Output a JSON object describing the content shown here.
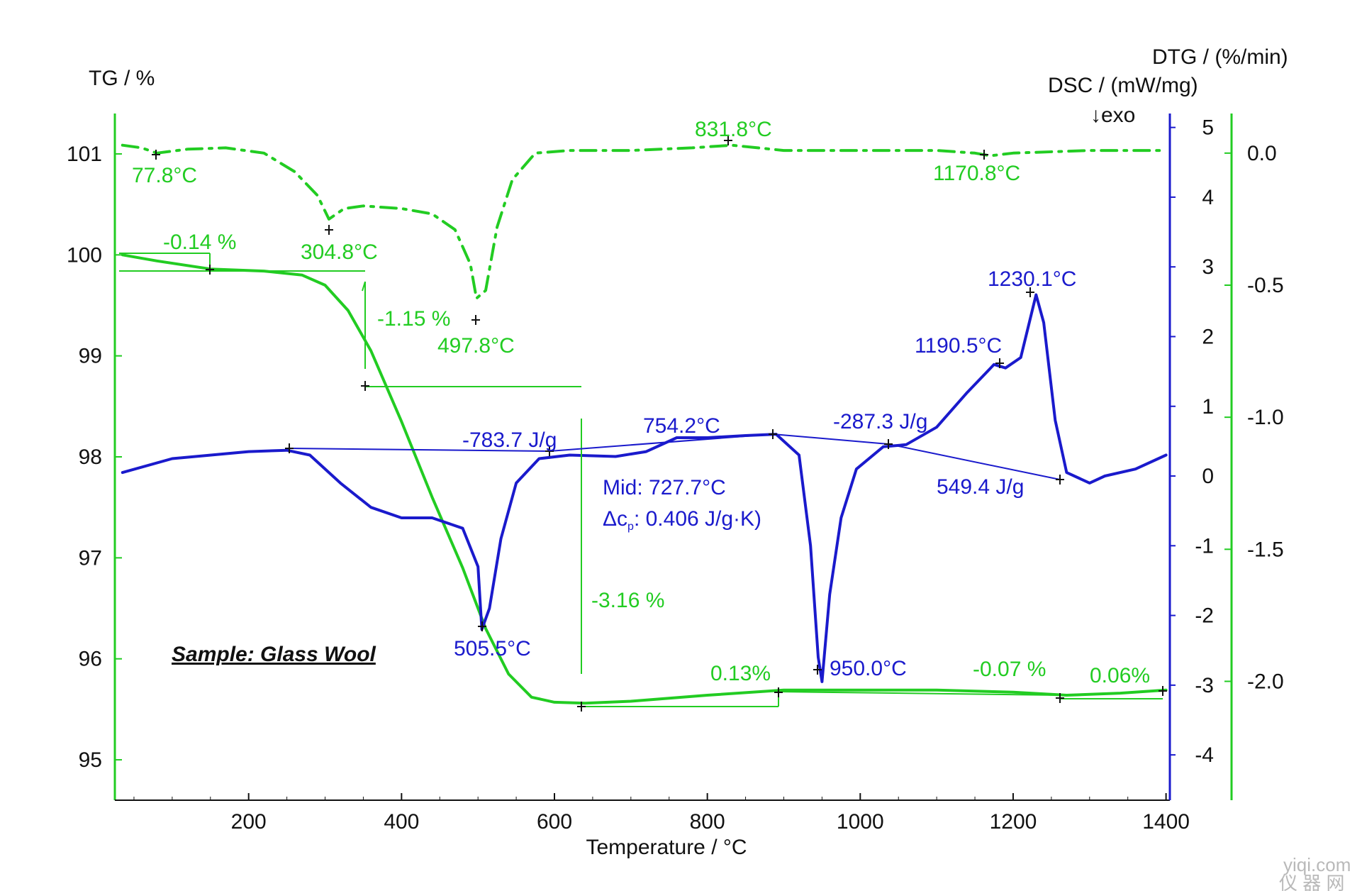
{
  "colors": {
    "tg": "#22cc22",
    "dtg": "#22cc22",
    "dsc": "#1a1acc",
    "text": "#111111"
  },
  "chart_data": {
    "type": "line",
    "xlabel": "Temperature / °C",
    "x_ticks": [
      "200",
      "400",
      "600",
      "800",
      "1000",
      "1200",
      "1400"
    ],
    "xlim": [
      25,
      1405
    ],
    "axes": {
      "tg": {
        "label": "TG / %",
        "ylim": [
          94.6,
          101.4
        ],
        "ticks": [
          "95",
          "96",
          "97",
          "98",
          "99",
          "100",
          "101"
        ]
      },
      "dsc": {
        "label": "DSC / (mW/mg)",
        "exo_label": "↓exo",
        "ylim": [
          -4.65,
          5.2
        ],
        "ticks": [
          "5",
          "4",
          "3",
          "2",
          "1",
          "0",
          "-1",
          "-2",
          "-3",
          "-4"
        ]
      },
      "dtg": {
        "label": "DTG / (%/min)",
        "ylim": [
          -2.45,
          0.15
        ],
        "ticks": [
          "0.0",
          "-0.5",
          "-1.0",
          "-1.5",
          "-2.0"
        ]
      }
    },
    "series": [
      {
        "key": "tg",
        "axis": "tg",
        "style": "solid",
        "points": [
          [
            35,
            100.0
          ],
          [
            80,
            99.94
          ],
          [
            150,
            99.86
          ],
          [
            220,
            99.84
          ],
          [
            270,
            99.8
          ],
          [
            300,
            99.7
          ],
          [
            330,
            99.45
          ],
          [
            360,
            99.05
          ],
          [
            400,
            98.35
          ],
          [
            440,
            97.6
          ],
          [
            480,
            96.9
          ],
          [
            510,
            96.3
          ],
          [
            540,
            95.85
          ],
          [
            570,
            95.62
          ],
          [
            600,
            95.57
          ],
          [
            640,
            95.56
          ],
          [
            700,
            95.58
          ],
          [
            800,
            95.64
          ],
          [
            900,
            95.69
          ],
          [
            1000,
            95.69
          ],
          [
            1100,
            95.69
          ],
          [
            1200,
            95.67
          ],
          [
            1270,
            95.64
          ],
          [
            1340,
            95.66
          ],
          [
            1400,
            95.69
          ]
        ]
      },
      {
        "key": "dtg",
        "axis": "dtg",
        "style": "dashdot",
        "points": [
          [
            35,
            0.03
          ],
          [
            60,
            0.02
          ],
          [
            80,
            0.0
          ],
          [
            120,
            0.015
          ],
          [
            170,
            0.02
          ],
          [
            220,
            0.0
          ],
          [
            260,
            -0.07
          ],
          [
            290,
            -0.16
          ],
          [
            305,
            -0.25
          ],
          [
            325,
            -0.21
          ],
          [
            350,
            -0.2
          ],
          [
            400,
            -0.21
          ],
          [
            440,
            -0.23
          ],
          [
            470,
            -0.29
          ],
          [
            490,
            -0.42
          ],
          [
            498,
            -0.55
          ],
          [
            510,
            -0.52
          ],
          [
            525,
            -0.28
          ],
          [
            545,
            -0.1
          ],
          [
            575,
            0.0
          ],
          [
            620,
            0.01
          ],
          [
            700,
            0.01
          ],
          [
            780,
            0.02
          ],
          [
            832,
            0.03
          ],
          [
            900,
            0.01
          ],
          [
            1000,
            0.01
          ],
          [
            1100,
            0.01
          ],
          [
            1150,
            0.0
          ],
          [
            1170,
            -0.01
          ],
          [
            1200,
            0.0
          ],
          [
            1300,
            0.01
          ],
          [
            1400,
            0.01
          ]
        ]
      },
      {
        "key": "dsc",
        "axis": "dsc",
        "style": "solid",
        "points": [
          [
            35,
            0.05
          ],
          [
            100,
            0.25
          ],
          [
            200,
            0.35
          ],
          [
            250,
            0.37
          ],
          [
            280,
            0.3
          ],
          [
            320,
            -0.1
          ],
          [
            360,
            -0.45
          ],
          [
            400,
            -0.6
          ],
          [
            440,
            -0.6
          ],
          [
            480,
            -0.75
          ],
          [
            500,
            -1.3
          ],
          [
            505,
            -2.2
          ],
          [
            515,
            -1.9
          ],
          [
            530,
            -0.9
          ],
          [
            550,
            -0.1
          ],
          [
            580,
            0.25
          ],
          [
            620,
            0.3
          ],
          [
            680,
            0.28
          ],
          [
            720,
            0.35
          ],
          [
            760,
            0.55
          ],
          [
            800,
            0.55
          ],
          [
            850,
            0.58
          ],
          [
            890,
            0.6
          ],
          [
            920,
            0.3
          ],
          [
            935,
            -1.0
          ],
          [
            945,
            -2.6
          ],
          [
            950,
            -2.95
          ],
          [
            960,
            -1.7
          ],
          [
            975,
            -0.6
          ],
          [
            995,
            0.1
          ],
          [
            1030,
            0.42
          ],
          [
            1060,
            0.45
          ],
          [
            1100,
            0.7
          ],
          [
            1140,
            1.2
          ],
          [
            1175,
            1.6
          ],
          [
            1190,
            1.55
          ],
          [
            1210,
            1.7
          ],
          [
            1230,
            2.6
          ],
          [
            1240,
            2.2
          ],
          [
            1255,
            0.8
          ],
          [
            1270,
            0.05
          ],
          [
            1300,
            -0.1
          ],
          [
            1320,
            0.0
          ],
          [
            1360,
            0.1
          ],
          [
            1400,
            0.3
          ]
        ]
      }
    ],
    "annotations": [
      {
        "axis": "dtg",
        "x": 77.8,
        "text": "77.8°C"
      },
      {
        "axis": "dtg",
        "x": 304.8,
        "text": "304.8°C"
      },
      {
        "axis": "dtg",
        "x": 497.8,
        "text": "497.8°C"
      },
      {
        "axis": "dtg",
        "x": 831.8,
        "text": "831.8°C"
      },
      {
        "axis": "dtg",
        "x": 1170.8,
        "text": "1170.8°C"
      },
      {
        "axis": "tg",
        "text": "-0.14 %"
      },
      {
        "axis": "tg",
        "text": "-1.15 %"
      },
      {
        "axis": "tg",
        "text": "-3.16 %"
      },
      {
        "axis": "tg",
        "text": "0.13%"
      },
      {
        "axis": "tg",
        "text": "-0.07 %"
      },
      {
        "axis": "tg",
        "text": "0.06%"
      },
      {
        "axis": "dsc",
        "x": 505.5,
        "text": "505.5°C"
      },
      {
        "axis": "dsc",
        "text": "-783.7 J/g"
      },
      {
        "axis": "dsc",
        "x": 754.2,
        "text": "754.2°C"
      },
      {
        "axis": "dsc",
        "text": "Mid: 727.7°C"
      },
      {
        "axis": "dsc",
        "text_prefix": "Δc",
        "text_sub": "p",
        "text_suffix": ": 0.406 J/g·K)"
      },
      {
        "axis": "dsc",
        "x": 950.0,
        "text": "950.0°C"
      },
      {
        "axis": "dsc",
        "text": "-287.3 J/g"
      },
      {
        "axis": "dsc",
        "x": 1190.5,
        "text": "1190.5°C"
      },
      {
        "axis": "dsc",
        "x": 1230.1,
        "text": "1230.1°C"
      },
      {
        "axis": "dsc",
        "text": "549.4 J/g"
      }
    ],
    "sample_label": "Sample: Glass Wool"
  },
  "watermark": {
    "line1": "yiqi.com",
    "line2": "仪 器 网"
  }
}
